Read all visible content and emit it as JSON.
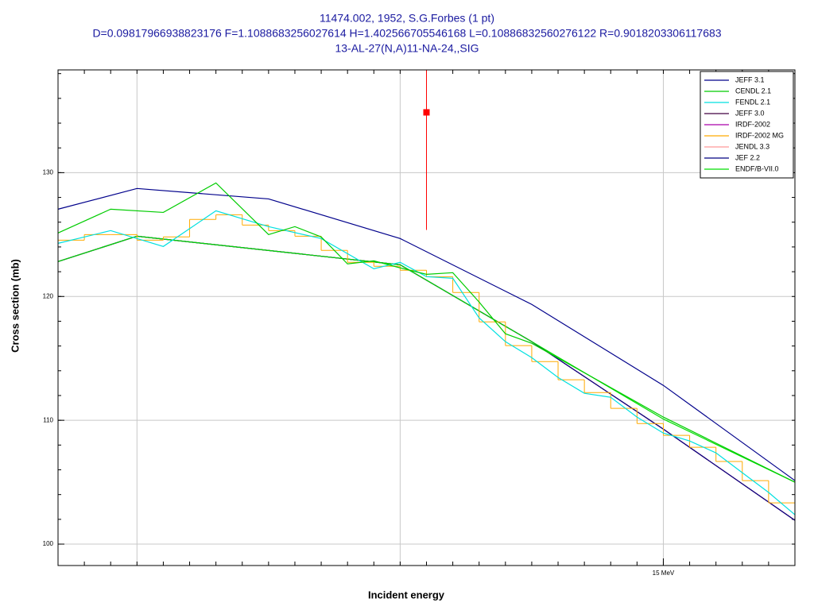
{
  "chart_data": {
    "type": "line",
    "title": "11474.002, 1952, S.G.Forbes (1 pt)",
    "subtitle": "D=0.09817966938823176 F=1.1088683256027614 H=1.402566705546168 L=0.10886832560276122 R=0.9018203306117683",
    "subtitle2": "13-AL-27(N,A)11-NA-24,,SIG",
    "x_label": "Incident energy",
    "y_label": "Cross section (mb)",
    "xlim": [
      13.85,
      15.25
    ],
    "ylim": [
      98.27,
      138.3
    ],
    "xticks": [
      {
        "value": 15,
        "label": "15 MeV"
      }
    ],
    "xgrid": [
      14,
      14.5,
      15
    ],
    "xminor": [
      13.9,
      13.95,
      14,
      14.05,
      14.1,
      14.15,
      14.2,
      14.25,
      14.3,
      14.35,
      14.4,
      14.45,
      14.5,
      14.55,
      14.6,
      14.65,
      14.7,
      14.75,
      14.8,
      14.85,
      14.9,
      14.95,
      15,
      15.05,
      15.1,
      15.15,
      15.2
    ],
    "yticks": [
      100,
      110,
      120,
      130
    ],
    "yminor": [
      100,
      102,
      104,
      106,
      108,
      110,
      112,
      114,
      116,
      118,
      120,
      122,
      124,
      126,
      128,
      130,
      132,
      134,
      136,
      138
    ],
    "grid": true,
    "legend": "top-right",
    "series": [
      {
        "name": "JEFF 3.1",
        "color": "#00008b",
        "x": [
          13.85,
          14.0,
          14.25,
          14.5,
          14.75,
          15.0,
          15.25
        ],
        "values": [
          127.05,
          128.72,
          127.88,
          124.68,
          119.36,
          112.82,
          105.13
        ]
      },
      {
        "name": "CENDL 2.1",
        "color": "#00cc00",
        "x": [
          13.85,
          13.95,
          14.05,
          14.15,
          14.25,
          14.3,
          14.35,
          14.4,
          14.45,
          14.5,
          14.55,
          14.6,
          14.65,
          14.7,
          14.75,
          15.0,
          15.25
        ],
        "values": [
          125.13,
          127.05,
          126.79,
          129.17,
          125.0,
          125.64,
          124.81,
          122.63,
          122.88,
          122.31,
          121.79,
          121.92,
          119.55,
          116.99,
          116.22,
          110.26,
          105.0
        ]
      },
      {
        "name": "FENDL 2.1",
        "color": "#00e0e0",
        "x": [
          13.85,
          13.95,
          14.05,
          14.15,
          14.25,
          14.35,
          14.45,
          14.5,
          14.55,
          14.6,
          14.65,
          14.7,
          14.75,
          14.8,
          14.85,
          14.9,
          14.95,
          15.0,
          15.05,
          15.1,
          15.15,
          15.2,
          15.25
        ],
        "values": [
          124.29,
          125.32,
          124.04,
          126.92,
          125.64,
          124.68,
          122.24,
          122.76,
          121.6,
          121.47,
          118.27,
          116.35,
          115.06,
          113.46,
          112.18,
          111.86,
          110.26,
          108.97,
          108.33,
          107.37,
          105.77,
          104.17,
          102.37
        ]
      },
      {
        "name": "JEFF 3.0",
        "color": "#400040",
        "x": [
          13.85,
          14.0,
          14.5,
          14.75,
          15.0,
          15.25
        ],
        "values": [
          122.82,
          124.87,
          122.56,
          116.35,
          109.29,
          101.92
        ]
      },
      {
        "name": "IRDF-2002",
        "color": "#aa00aa",
        "x": [
          13.85,
          14.0,
          14.5,
          14.75,
          15.0,
          15.25
        ],
        "values": [
          122.82,
          124.87,
          122.56,
          116.35,
          109.29,
          101.92
        ]
      },
      {
        "name": "IRDF-2002 MG",
        "color": "#ffaa00",
        "bins": [
          13.85,
          13.9,
          13.95,
          14.0,
          14.05,
          14.1,
          14.15,
          14.2,
          14.25,
          14.3,
          14.35,
          14.4,
          14.45,
          14.5,
          14.55,
          14.6,
          14.65,
          14.7,
          14.75,
          14.8,
          14.85,
          14.9,
          14.95,
          15.0,
          15.05,
          15.1,
          15.15,
          15.2,
          15.25
        ],
        "values": [
          124.55,
          125.0,
          125.0,
          124.55,
          124.81,
          126.22,
          126.6,
          125.77,
          125.32,
          124.87,
          123.72,
          122.76,
          122.44,
          122.12,
          121.6,
          120.32,
          117.95,
          116.03,
          114.74,
          113.27,
          112.24,
          110.96,
          109.74,
          108.78,
          107.82,
          106.67,
          105.13,
          103.33
        ]
      },
      {
        "name": "JENDL 3.3",
        "color": "#ff9999",
        "x": [
          13.85,
          14.0,
          14.5,
          14.75,
          15.0,
          15.25
        ],
        "values": [
          122.82,
          124.87,
          122.56,
          116.35,
          109.29,
          101.92
        ]
      },
      {
        "name": "JEF 2.2",
        "color": "#000080",
        "x": [
          13.85,
          14.0,
          14.5,
          14.75,
          15.0,
          15.25
        ],
        "values": [
          122.82,
          124.87,
          122.56,
          116.35,
          109.29,
          101.92
        ]
      },
      {
        "name": "ENDF/B-VII.0",
        "color": "#00dd00",
        "x": [
          13.85,
          14.0,
          14.5,
          14.75,
          15.0,
          15.25
        ],
        "values": [
          122.82,
          124.87,
          122.56,
          116.35,
          110.1,
          105.0
        ]
      }
    ],
    "points": {
      "color": "#ff0000",
      "x": [
        14.55
      ],
      "values": [
        134.87
      ],
      "errors": [
        9.5
      ]
    }
  }
}
